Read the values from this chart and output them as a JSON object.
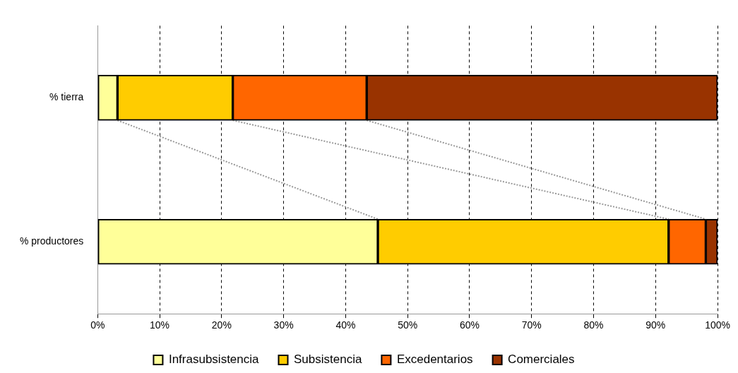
{
  "chart_data": {
    "type": "bar",
    "orientation": "horizontal",
    "stacked": true,
    "categories": [
      "% tierra",
      "% productores"
    ],
    "series": [
      {
        "name": "Infrasubsistencia",
        "color": "#ffff99",
        "values": [
          3.2,
          45.2
        ]
      },
      {
        "name": "Subsistencia",
        "color": "#ffcc00",
        "values": [
          18.6,
          46.9
        ]
      },
      {
        "name": "Excedentarios",
        "color": "#ff6600",
        "values": [
          21.6,
          6.0
        ]
      },
      {
        "name": "Comerciales",
        "color": "#993300",
        "values": [
          56.6,
          1.9
        ]
      }
    ],
    "xlim": [
      0,
      100
    ],
    "xticks": [
      {
        "value": 0,
        "label": "0%"
      },
      {
        "value": 10,
        "label": "10%"
      },
      {
        "value": 20,
        "label": "20%"
      },
      {
        "value": 30,
        "label": "30%"
      },
      {
        "value": 40,
        "label": "40%"
      },
      {
        "value": 50,
        "label": "50%"
      },
      {
        "value": 60,
        "label": "60%"
      },
      {
        "value": 70,
        "label": "70%"
      },
      {
        "value": 80,
        "label": "80%"
      },
      {
        "value": 90,
        "label": "90%"
      },
      {
        "value": 100,
        "label": "100%"
      }
    ],
    "grid": "x",
    "legend": "bottom"
  }
}
